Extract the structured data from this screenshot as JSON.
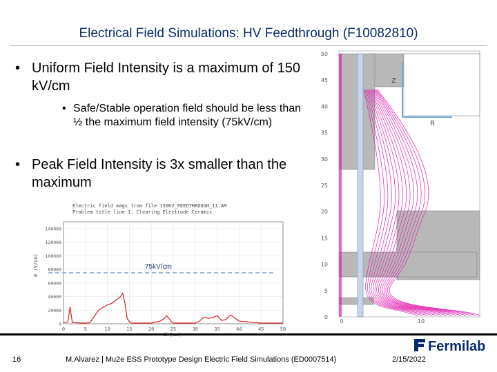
{
  "slide": {
    "title": "Electrical Field Simulations: HV Feedthrough (F10082810)",
    "bullets": [
      {
        "text": "Uniform Field Intensity is a maximum of 150 kV/cm"
      },
      {
        "text": "Safe/Stable operation field should be less than ½ the maximum field intensity (75kV/cm)"
      },
      {
        "text": "Peak Field Intensity is 3x smaller than the maximum"
      }
    ],
    "bullet_glyph": "•"
  },
  "chart_data": {
    "type": "line",
    "title": "Electric field mags from file 150KV_FEEDTHROUGH_11.AM",
    "subtitle": "Problem title line 1: Clearing Electrode Ceramic",
    "xlabel": "Z (cm)",
    "ylabel": "E (V/cm)",
    "xlim": [
      0,
      50
    ],
    "ylim": [
      0,
      150000
    ],
    "x_ticks": [
      0,
      5,
      10,
      15,
      20,
      25,
      30,
      35,
      40,
      45,
      50
    ],
    "y_ticks": [
      0,
      20000,
      40000,
      60000,
      80000,
      100000,
      120000,
      140000
    ],
    "annotation": "75kV/cm",
    "threshold": 75000,
    "series": [
      {
        "color": "#d42020",
        "x": [
          0,
          0.5,
          1,
          1.5,
          2,
          3,
          4,
          5,
          6,
          8,
          10,
          11,
          12,
          13,
          13.5,
          14,
          14.5,
          15,
          15.5,
          16,
          20,
          22,
          23,
          23.5,
          24,
          24.5,
          25,
          26,
          30,
          31,
          32,
          33,
          34,
          35,
          36,
          37,
          38,
          40,
          45,
          50
        ],
        "y": [
          2000,
          2000,
          3000,
          25000,
          2000,
          1500,
          1000,
          1000,
          1500,
          20000,
          28000,
          30000,
          35000,
          40000,
          45000,
          30000,
          8000,
          3000,
          1000,
          1000,
          1000,
          4000,
          8000,
          12000,
          8000,
          3000,
          1000,
          1000,
          1000,
          4000,
          10000,
          8000,
          9000,
          12000,
          5000,
          6000,
          13000,
          4000,
          1000,
          1000
        ]
      }
    ]
  },
  "sim_figure": {
    "y_ticks": [
      0,
      5,
      10,
      15,
      20,
      25,
      30,
      35,
      40,
      45,
      50
    ],
    "x_ticks": [
      0,
      10
    ],
    "axis_label_z": "Z",
    "axis_label_r": "R"
  },
  "footer": {
    "page_number": "16",
    "text": "M.Alvarez | Mu2e ESS Prototype Design Electric Field Simulations (ED0007514)",
    "date": "2/15/2022",
    "logo_text": "Fermilab"
  },
  "colors": {
    "title": "#0a2a6b",
    "curve": "#d42020",
    "threshold_line": "#9fb8d8",
    "field_lines": "#e020b0",
    "electrode": "#b8b8b8",
    "logo": "#0a2a6b"
  }
}
